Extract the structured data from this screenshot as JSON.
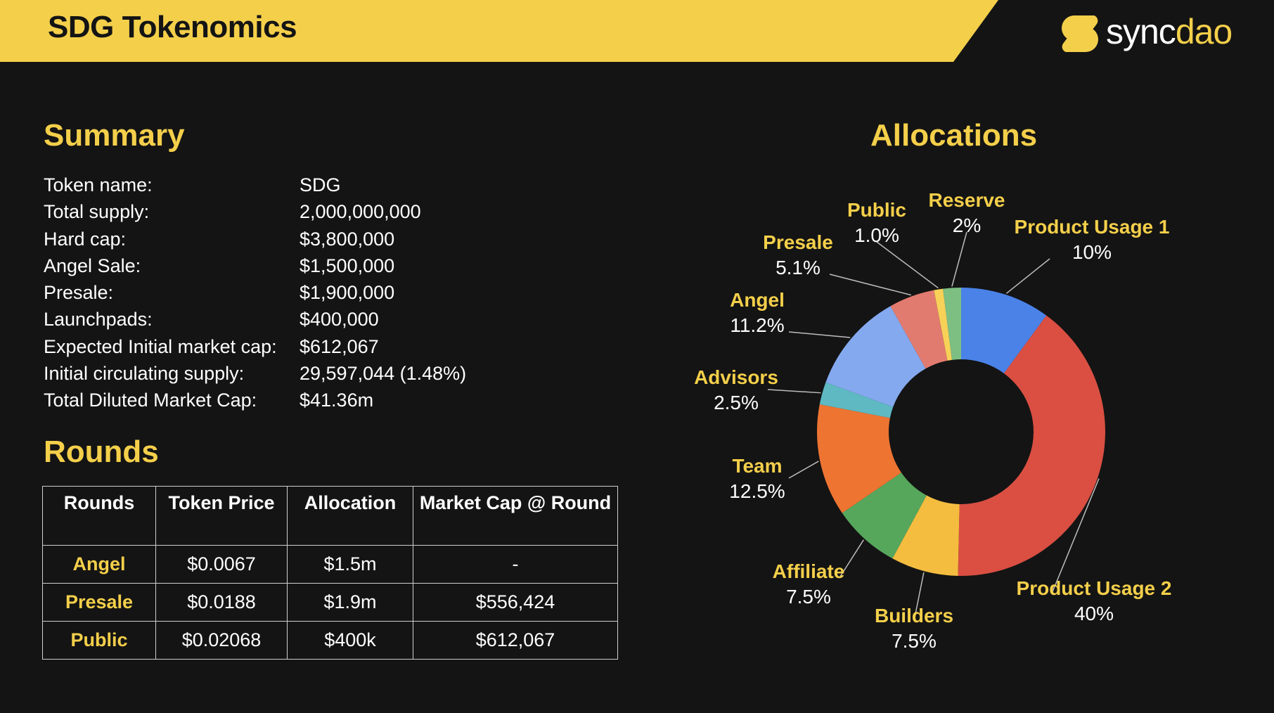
{
  "header": {
    "title": "SDG Tokenomics",
    "brand": {
      "part1": "sync",
      "part2": "dao",
      "accent": "#f4cf4a"
    }
  },
  "summary": {
    "title": "Summary",
    "rows": [
      {
        "label": "Token name:",
        "value": "SDG"
      },
      {
        "label": "Total supply:",
        "value": "2,000,000,000"
      },
      {
        "label": "Hard cap:",
        "value": "$3,800,000"
      },
      {
        "label": "Angel Sale:",
        "value": "$1,500,000"
      },
      {
        "label": "Presale:",
        "value": "$1,900,000"
      },
      {
        "label": "Launchpads:",
        "value": "$400,000"
      },
      {
        "label": "Expected Initial market cap:",
        "value": "$612,067"
      },
      {
        "label": "Initial circulating supply:",
        "value": "29,597,044 (1.48%)"
      },
      {
        "label": "Total Diluted Market Cap:",
        "value": "$41.36m"
      }
    ]
  },
  "rounds": {
    "title": "Rounds",
    "headers": [
      "Rounds",
      "Token Price",
      "Allocation",
      "Market Cap @ Round"
    ],
    "rows": [
      [
        "Angel",
        "$0.0067",
        "$1.5m",
        "-"
      ],
      [
        "Presale",
        "$0.0188",
        "$1.9m",
        "$556,424"
      ],
      [
        "Public",
        "$0.02068",
        "$400k",
        "$612,067"
      ]
    ]
  },
  "chart_data": {
    "type": "pie",
    "title": "Allocations",
    "donut": true,
    "categories": [
      "Product Usage 1",
      "Product Usage 2",
      "Builders",
      "Affiliate",
      "Team",
      "Advisors",
      "Angel",
      "Presale",
      "Public",
      "Reserve"
    ],
    "values": [
      10,
      40,
      7.5,
      7.5,
      12.5,
      2.5,
      11.2,
      5.1,
      1.0,
      2
    ],
    "value_labels": [
      "10%",
      "40%",
      "7.5%",
      "7.5%",
      "12.5%",
      "2.5%",
      "11.2%",
      "5.1%",
      "1.0%",
      "2%"
    ],
    "colors": [
      "#4a82e8",
      "#da4f42",
      "#f4bd3f",
      "#56a75c",
      "#ee7432",
      "#5eb9c2",
      "#84a9ee",
      "#e27b6f",
      "#f7d158",
      "#7dbf82"
    ],
    "start": "12 o'clock, clockwise",
    "legend": "none"
  },
  "theme": {
    "background": "#141414",
    "accent": "#f4cf4a",
    "text": "#ffffff",
    "header_text": "#141414"
  }
}
